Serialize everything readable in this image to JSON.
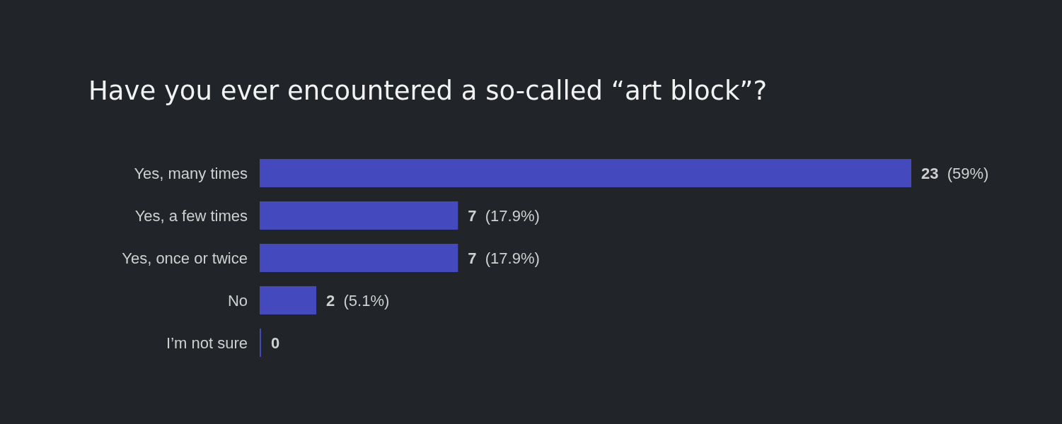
{
  "chart_data": {
    "type": "bar",
    "orientation": "horizontal",
    "title": "Have you ever encountered a so-called “art block”?",
    "categories": [
      "Yes, many times",
      "Yes, a few times",
      "Yes, once or twice",
      "No",
      "I’m not sure"
    ],
    "values": [
      23,
      7,
      7,
      2,
      0
    ],
    "value_labels": [
      "23  (59%)",
      "7  (17.9%)",
      "7  (17.9%)",
      "2  (5.1%)",
      "0"
    ],
    "color": "#4449be",
    "xlim": [
      0,
      23
    ]
  }
}
